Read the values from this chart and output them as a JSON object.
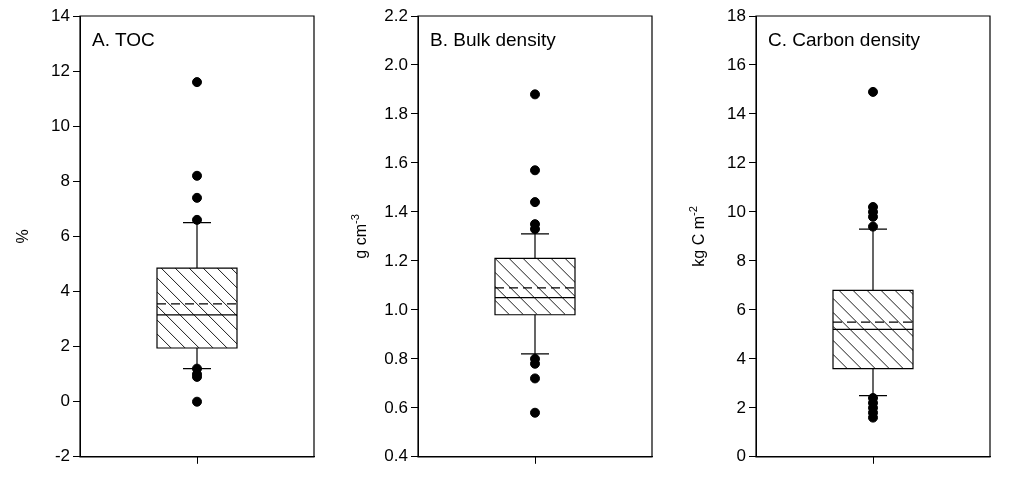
{
  "chart_data": [
    {
      "type": "box",
      "title": "A. TOC",
      "ylabel": "%",
      "categories": [
        null
      ],
      "ylim": [
        -2,
        14
      ],
      "yticks": [
        -2,
        0,
        2,
        4,
        6,
        8,
        10,
        12,
        14
      ],
      "grid": false,
      "boxes": [
        {
          "low": 1.2,
          "q1": 1.95,
          "median": 3.15,
          "q3": 4.85,
          "high": 6.5,
          "mean": 3.55,
          "outliers": [
            0.0,
            0.9,
            1.0,
            1.2,
            6.6,
            7.4,
            8.2,
            11.6
          ]
        }
      ]
    },
    {
      "type": "box",
      "title": "B. Bulk density",
      "ylabel": "g cm$^{-3}$",
      "categories": [
        null
      ],
      "ylim": [
        0.4,
        2.2
      ],
      "yticks": [
        0.4,
        0.6,
        0.8,
        {
          "value": 1,
          "label": "1.0"
        },
        1.2,
        1.4,
        1.6,
        1.8,
        {
          "value": 2,
          "label": "2.0"
        },
        2.2
      ],
      "grid": false,
      "boxes": [
        {
          "low": 0.82,
          "q1": 0.98,
          "median": 1.05,
          "q3": 1.21,
          "high": 1.31,
          "mean": 1.09,
          "outliers": [
            0.58,
            0.72,
            0.78,
            0.8,
            1.33,
            1.35,
            1.44,
            1.57,
            1.88
          ]
        }
      ]
    },
    {
      "type": "box",
      "title": "C. Carbon density",
      "ylabel": "kg C m$^{-2}$",
      "categories": [
        null
      ],
      "ylim": [
        0,
        18
      ],
      "yticks": [
        0,
        2,
        4,
        6,
        8,
        10,
        12,
        14,
        16,
        18
      ],
      "grid": false,
      "boxes": [
        {
          "low": 2.5,
          "q1": 3.6,
          "median": 5.2,
          "q3": 6.8,
          "high": 9.3,
          "mean": 5.5,
          "outliers": [
            1.6,
            1.8,
            2.0,
            2.2,
            2.4,
            9.4,
            9.8,
            10.0,
            10.2,
            14.9
          ]
        }
      ]
    }
  ]
}
